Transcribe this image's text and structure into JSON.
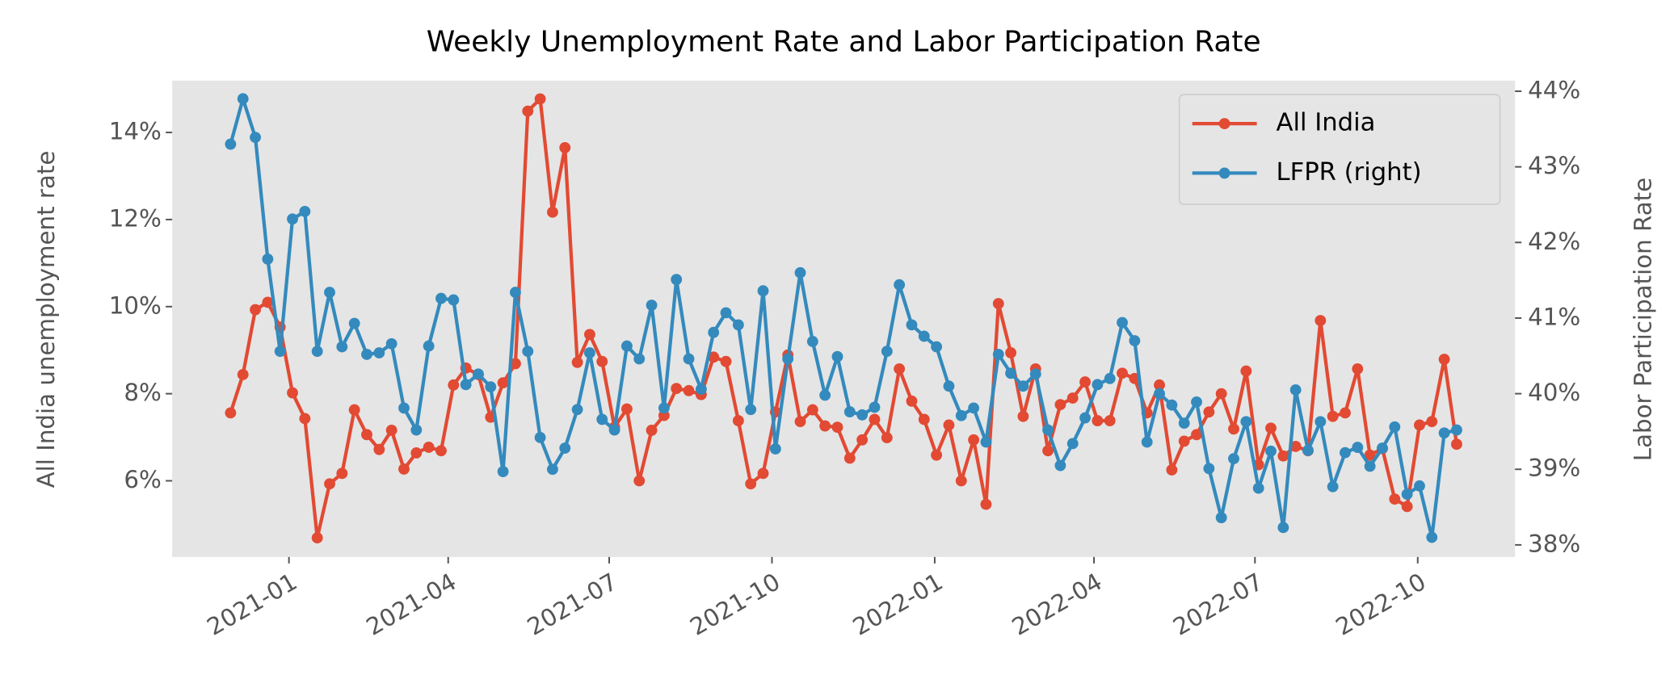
{
  "chart_data": {
    "type": "line",
    "title": "Weekly Unemployment Rate and Labor Participation Rate",
    "ylabel": "All India unemployment rate",
    "y2label": "Labor Participation Rate",
    "legend": "upper right",
    "grid": false,
    "x": [
      "2020-11-29",
      "2020-12-06",
      "2020-12-13",
      "2020-12-20",
      "2020-12-27",
      "2021-01-03",
      "2021-01-10",
      "2021-01-17",
      "2021-01-24",
      "2021-01-31",
      "2021-02-07",
      "2021-02-14",
      "2021-02-21",
      "2021-02-28",
      "2021-03-07",
      "2021-03-14",
      "2021-03-21",
      "2021-03-28",
      "2021-04-04",
      "2021-04-11",
      "2021-04-18",
      "2021-04-25",
      "2021-05-02",
      "2021-05-09",
      "2021-05-16",
      "2021-05-23",
      "2021-05-30",
      "2021-06-06",
      "2021-06-13",
      "2021-06-20",
      "2021-06-27",
      "2021-07-04",
      "2021-07-11",
      "2021-07-18",
      "2021-07-25",
      "2021-08-01",
      "2021-08-08",
      "2021-08-15",
      "2021-08-22",
      "2021-08-29",
      "2021-09-05",
      "2021-09-12",
      "2021-09-19",
      "2021-09-26",
      "2021-10-03",
      "2021-10-10",
      "2021-10-17",
      "2021-10-24",
      "2021-10-31",
      "2021-11-07",
      "2021-11-14",
      "2021-11-21",
      "2021-11-28",
      "2021-12-05",
      "2021-12-12",
      "2021-12-19",
      "2021-12-26",
      "2022-01-02",
      "2022-01-09",
      "2022-01-16",
      "2022-01-23",
      "2022-01-30",
      "2022-02-06",
      "2022-02-13",
      "2022-02-20",
      "2022-02-27",
      "2022-03-06",
      "2022-03-13",
      "2022-03-20",
      "2022-03-27",
      "2022-04-03",
      "2022-04-10",
      "2022-04-17",
      "2022-04-24",
      "2022-05-01",
      "2022-05-08",
      "2022-05-15",
      "2022-05-22",
      "2022-05-29",
      "2022-06-05",
      "2022-06-12",
      "2022-06-19",
      "2022-06-26",
      "2022-07-03",
      "2022-07-10",
      "2022-07-17",
      "2022-07-24",
      "2022-07-31",
      "2022-08-07",
      "2022-08-14",
      "2022-08-21",
      "2022-08-28",
      "2022-09-04",
      "2022-09-11",
      "2022-09-18",
      "2022-09-25",
      "2022-10-02",
      "2022-10-09",
      "2022-10-16",
      "2022-10-23"
    ],
    "xlim": [
      "2020-10-27",
      "2022-11-25"
    ],
    "xticks": [
      {
        "value": "2021-01-01",
        "label": "2021-01"
      },
      {
        "value": "2021-04-01",
        "label": "2021-04"
      },
      {
        "value": "2021-07-01",
        "label": "2021-07"
      },
      {
        "value": "2021-10-01",
        "label": "2021-10"
      },
      {
        "value": "2022-01-01",
        "label": "2022-01"
      },
      {
        "value": "2022-04-01",
        "label": "2022-04"
      },
      {
        "value": "2022-07-01",
        "label": "2022-07"
      },
      {
        "value": "2022-10-01",
        "label": "2022-10"
      }
    ],
    "ylim": [
      4.25,
      15.19
    ],
    "yticks": [
      {
        "value": 6,
        "label": "6%"
      },
      {
        "value": 8,
        "label": "8%"
      },
      {
        "value": 10,
        "label": "10%"
      },
      {
        "value": 12,
        "label": "12%"
      },
      {
        "value": 14,
        "label": "14%"
      }
    ],
    "y2lim": [
      37.84,
      44.14
    ],
    "y2ticks": [
      {
        "value": 38,
        "label": "38%"
      },
      {
        "value": 39,
        "label": "39%"
      },
      {
        "value": 40,
        "label": "40%"
      },
      {
        "value": 41,
        "label": "41%"
      },
      {
        "value": 42,
        "label": "42%"
      },
      {
        "value": 43,
        "label": "43%"
      },
      {
        "value": 44,
        "label": "44%"
      }
    ],
    "series": [
      {
        "name": "All India",
        "color": "#E24A33",
        "values": [
          7.56,
          8.44,
          9.93,
          10.1,
          9.53,
          8.02,
          7.43,
          4.69,
          5.93,
          6.17,
          7.63,
          7.06,
          6.72,
          7.16,
          6.27,
          6.64,
          6.77,
          6.69,
          8.2,
          8.59,
          8.44,
          7.46,
          8.25,
          8.69,
          14.49,
          14.77,
          12.17,
          13.65,
          8.72,
          9.36,
          8.74,
          7.23,
          7.65,
          6.0,
          7.16,
          7.5,
          8.12,
          8.07,
          7.98,
          8.84,
          8.74,
          7.38,
          5.93,
          6.17,
          7.58,
          8.89,
          7.36,
          7.63,
          7.26,
          7.23,
          6.52,
          6.94,
          7.41,
          6.99,
          8.57,
          7.83,
          7.41,
          6.59,
          7.28,
          6.0,
          6.94,
          5.46,
          10.07,
          8.94,
          7.48,
          8.57,
          6.69,
          7.75,
          7.9,
          8.27,
          7.38,
          7.38,
          8.47,
          8.35,
          7.56,
          8.2,
          6.25,
          6.91,
          7.06,
          7.58,
          8.0,
          7.19,
          8.52,
          6.37,
          7.21,
          6.57,
          6.79,
          6.69,
          9.68,
          7.48,
          7.56,
          8.57,
          6.59,
          6.74,
          5.58,
          5.41,
          7.28,
          7.36,
          8.79,
          6.84
        ]
      },
      {
        "name": "LFPR (right)",
        "color": "#348ABD",
        "axis": "y2",
        "values": [
          43.3,
          43.9,
          43.39,
          41.78,
          40.56,
          42.31,
          42.41,
          40.56,
          41.34,
          40.62,
          40.93,
          40.52,
          40.54,
          40.66,
          39.81,
          39.52,
          40.63,
          41.26,
          41.24,
          40.12,
          40.26,
          40.09,
          38.97,
          41.34,
          40.56,
          39.42,
          39.0,
          39.28,
          39.79,
          40.54,
          39.66,
          39.52,
          40.63,
          40.46,
          41.17,
          39.81,
          41.51,
          40.46,
          40.06,
          40.81,
          41.07,
          40.91,
          39.79,
          41.36,
          39.27,
          40.46,
          41.6,
          40.69,
          39.98,
          40.49,
          39.76,
          39.72,
          39.82,
          40.56,
          41.44,
          40.91,
          40.76,
          40.62,
          40.1,
          39.71,
          39.81,
          39.36,
          40.52,
          40.27,
          40.1,
          40.26,
          39.52,
          39.05,
          39.34,
          39.68,
          40.12,
          40.2,
          40.94,
          40.7,
          39.36,
          40.0,
          39.85,
          39.61,
          39.89,
          39.01,
          38.36,
          39.14,
          39.63,
          38.75,
          39.24,
          38.23,
          40.05,
          39.25,
          39.63,
          38.77,
          39.22,
          39.29,
          39.04,
          39.28,
          39.56,
          38.67,
          38.78,
          38.1,
          39.48,
          39.52
        ]
      }
    ]
  }
}
